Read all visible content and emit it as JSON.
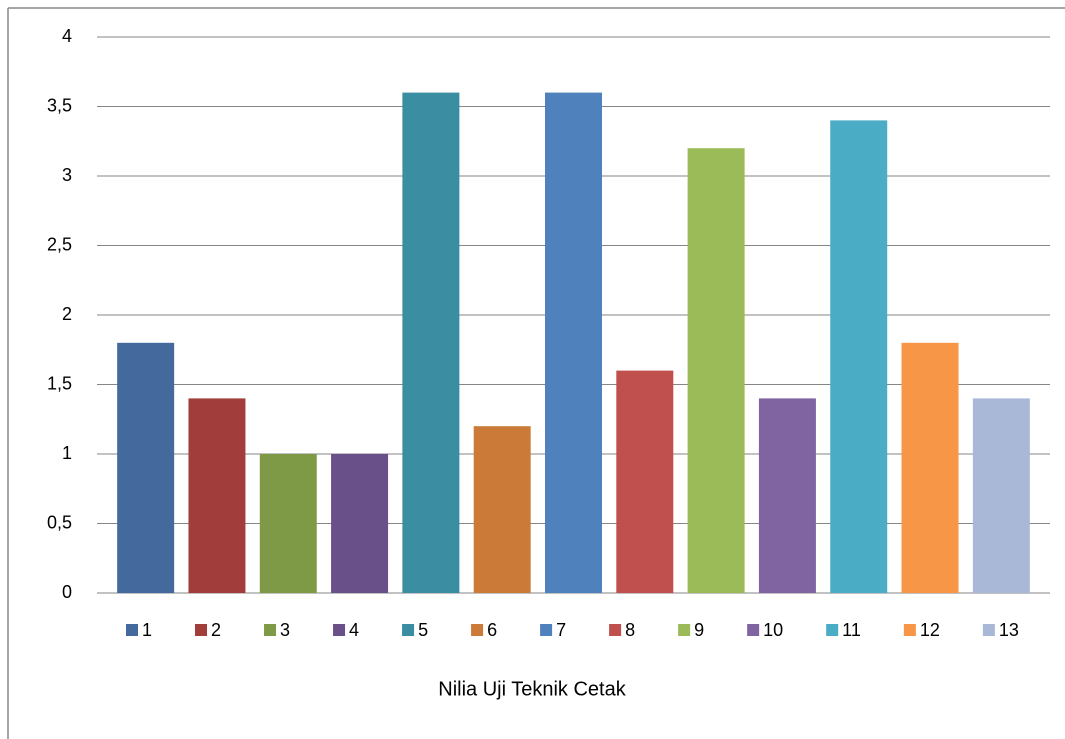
{
  "chart_data": {
    "type": "bar",
    "x_label": "Nilia Uji Teknik Cetak",
    "series": [
      {
        "name": "1",
        "color": "#43699d",
        "values": [
          1.8
        ]
      },
      {
        "name": "2",
        "color": "#a13e3b",
        "values": [
          1.4
        ]
      },
      {
        "name": "3",
        "color": "#7f9a47",
        "values": [
          1.0
        ]
      },
      {
        "name": "4",
        "color": "#6a5088",
        "values": [
          1.0
        ]
      },
      {
        "name": "5",
        "color": "#3b8ea1",
        "values": [
          3.6
        ]
      },
      {
        "name": "6",
        "color": "#cb7b37",
        "values": [
          1.2
        ]
      },
      {
        "name": "7",
        "color": "#4f81bd",
        "values": [
          3.6
        ]
      },
      {
        "name": "8",
        "color": "#c0504d",
        "values": [
          1.6
        ]
      },
      {
        "name": "9",
        "color": "#9bbb59",
        "values": [
          3.2
        ]
      },
      {
        "name": "10",
        "color": "#8064a2",
        "values": [
          1.4
        ]
      },
      {
        "name": "11",
        "color": "#4bacc6",
        "values": [
          3.4
        ]
      },
      {
        "name": "12",
        "color": "#f79646",
        "values": [
          1.8
        ]
      },
      {
        "name": "13",
        "color": "#aab8d8",
        "values": [
          1.4
        ]
      }
    ],
    "ylim": [
      0,
      4
    ],
    "yticks": [
      0,
      {
        "value": 0.5,
        "label": "0,5"
      },
      1,
      {
        "value": 1.5,
        "label": "1,5"
      },
      2,
      {
        "value": 2.5,
        "label": "2,5"
      },
      3,
      {
        "value": 3.5,
        "label": "3,5"
      },
      4
    ],
    "grid": true,
    "legend": "bottom"
  }
}
